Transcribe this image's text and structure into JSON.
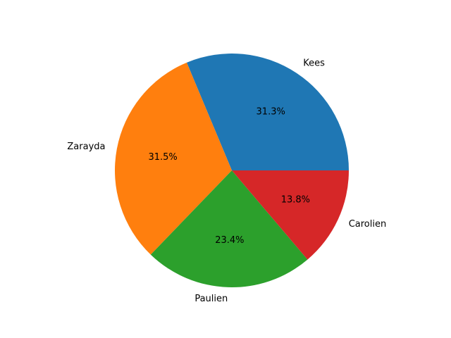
{
  "chart_data": {
    "type": "pie",
    "categories": [
      "Kees",
      "Zarayda",
      "Paulien",
      "Carolien"
    ],
    "values": [
      31.3,
      31.5,
      23.4,
      13.8
    ],
    "percent_labels": [
      "31.3%",
      "31.5%",
      "23.4%",
      "13.8%"
    ],
    "colors": [
      "#1f77b4",
      "#ff7f0e",
      "#2ca02c",
      "#d62728"
    ],
    "start_angle_deg": 0,
    "direction": "counterclockwise",
    "title": "",
    "legend": "none"
  }
}
